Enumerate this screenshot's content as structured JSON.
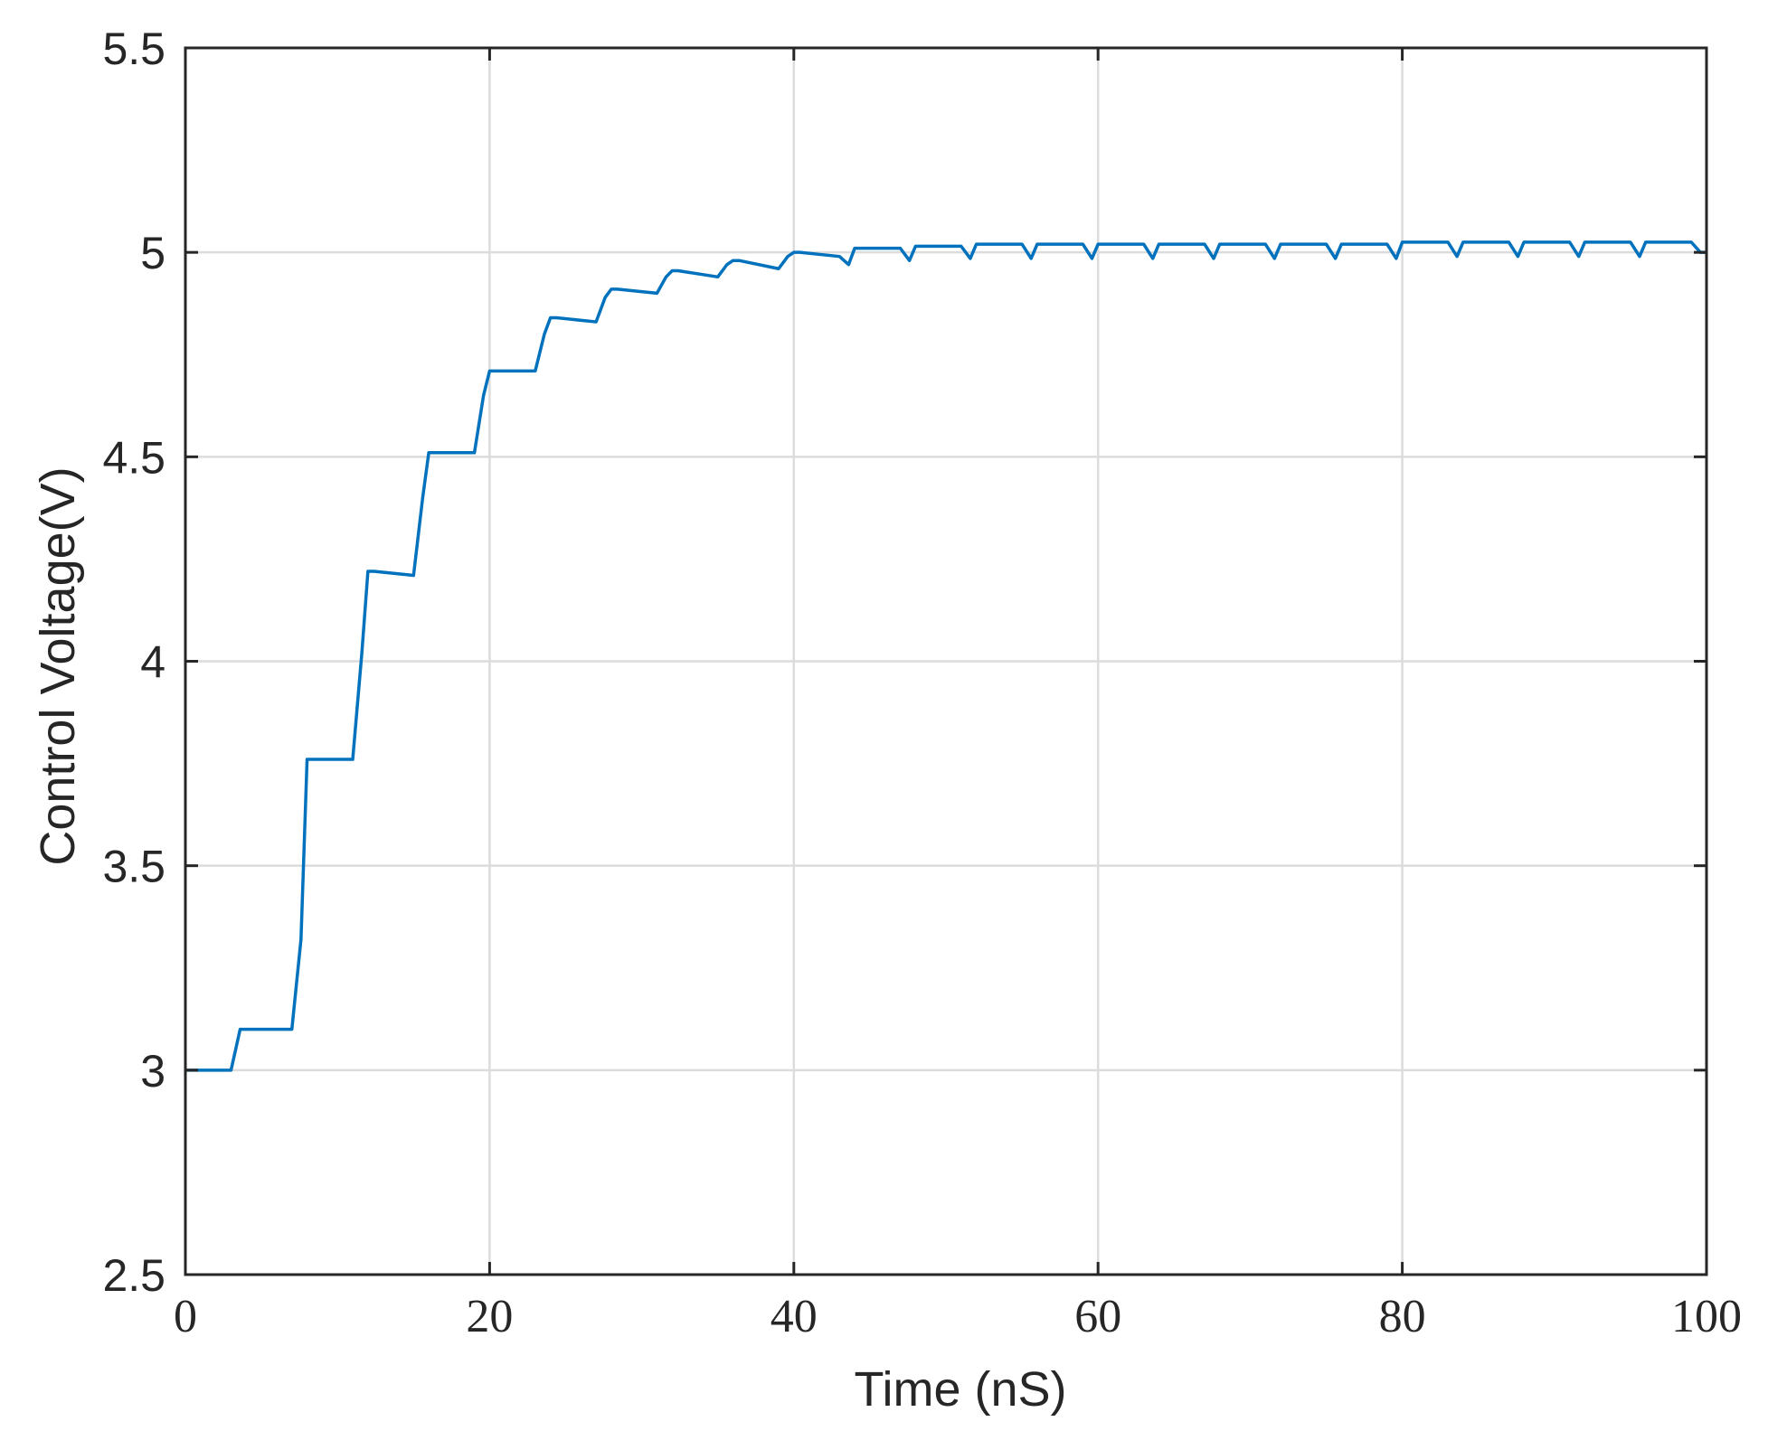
{
  "chart_data": {
    "type": "line",
    "xlabel": "Time (nS)",
    "ylabel": "Control Voltage(V)",
    "xlim": [
      0,
      100
    ],
    "ylim": [
      2.5,
      5.5
    ],
    "xticks": [
      0,
      20,
      40,
      60,
      80,
      100
    ],
    "xtick_labels": [
      "0",
      "20",
      "40",
      "60",
      "80",
      "100"
    ],
    "yticks": [
      2.5,
      3,
      3.5,
      4,
      4.5,
      5,
      5.5
    ],
    "ytick_labels": [
      "2.5",
      "3",
      "3.5",
      "4",
      "4.5",
      "5",
      "5.5"
    ],
    "grid": true,
    "line_color": "#0072BD",
    "series": [
      {
        "x": [
          0,
          3,
          3.6,
          7,
          7.6,
          8,
          8.4,
          11,
          11.6,
          12,
          12.4,
          15,
          15.6,
          16,
          16.4,
          19,
          19.6,
          20,
          20.4,
          23,
          23.6,
          24,
          24.4,
          27,
          27.6,
          28,
          28.4,
          31,
          31.6,
          32,
          32.4,
          35,
          35.6,
          36,
          36.4,
          39,
          39.6,
          40,
          40.4,
          43,
          43.6,
          44,
          44.4,
          47,
          47.6,
          48,
          48.4,
          51,
          51.6,
          52,
          52.4,
          55,
          55.6,
          56,
          56.4,
          59,
          59.6,
          60,
          60.4,
          63,
          63.6,
          64,
          64.4,
          67,
          67.6,
          68,
          68.4,
          71,
          71.6,
          72,
          72.4,
          75,
          75.6,
          76,
          76.4,
          79,
          79.6,
          80,
          80.4,
          83,
          83.6,
          84,
          84.4,
          87,
          87.6,
          88,
          88.4,
          91,
          91.6,
          92,
          92.4,
          95,
          95.6,
          96,
          96.4,
          99,
          99.6,
          100
        ],
        "y": [
          3.0,
          3.0,
          3.1,
          3.1,
          3.32,
          3.76,
          3.76,
          3.76,
          4.02,
          4.22,
          4.22,
          4.21,
          4.4,
          4.51,
          4.51,
          4.51,
          4.65,
          4.71,
          4.71,
          4.71,
          4.8,
          4.84,
          4.84,
          4.83,
          4.89,
          4.91,
          4.91,
          4.9,
          4.94,
          4.955,
          4.955,
          4.94,
          4.97,
          4.98,
          4.98,
          4.96,
          4.99,
          5.0,
          5.0,
          4.99,
          4.97,
          5.01,
          5.01,
          5.01,
          4.98,
          5.015,
          5.015,
          5.015,
          4.985,
          5.02,
          5.02,
          5.02,
          4.985,
          5.02,
          5.02,
          5.02,
          4.985,
          5.02,
          5.02,
          5.02,
          4.985,
          5.02,
          5.02,
          5.02,
          4.985,
          5.02,
          5.02,
          5.02,
          4.985,
          5.02,
          5.02,
          5.02,
          4.985,
          5.02,
          5.02,
          5.02,
          4.985,
          5.025,
          5.025,
          5.025,
          4.99,
          5.025,
          5.025,
          5.025,
          4.99,
          5.025,
          5.025,
          5.025,
          4.99,
          5.025,
          5.025,
          5.025,
          4.99,
          5.025,
          5.025,
          5.025,
          5.0,
          5.0
        ]
      }
    ]
  }
}
